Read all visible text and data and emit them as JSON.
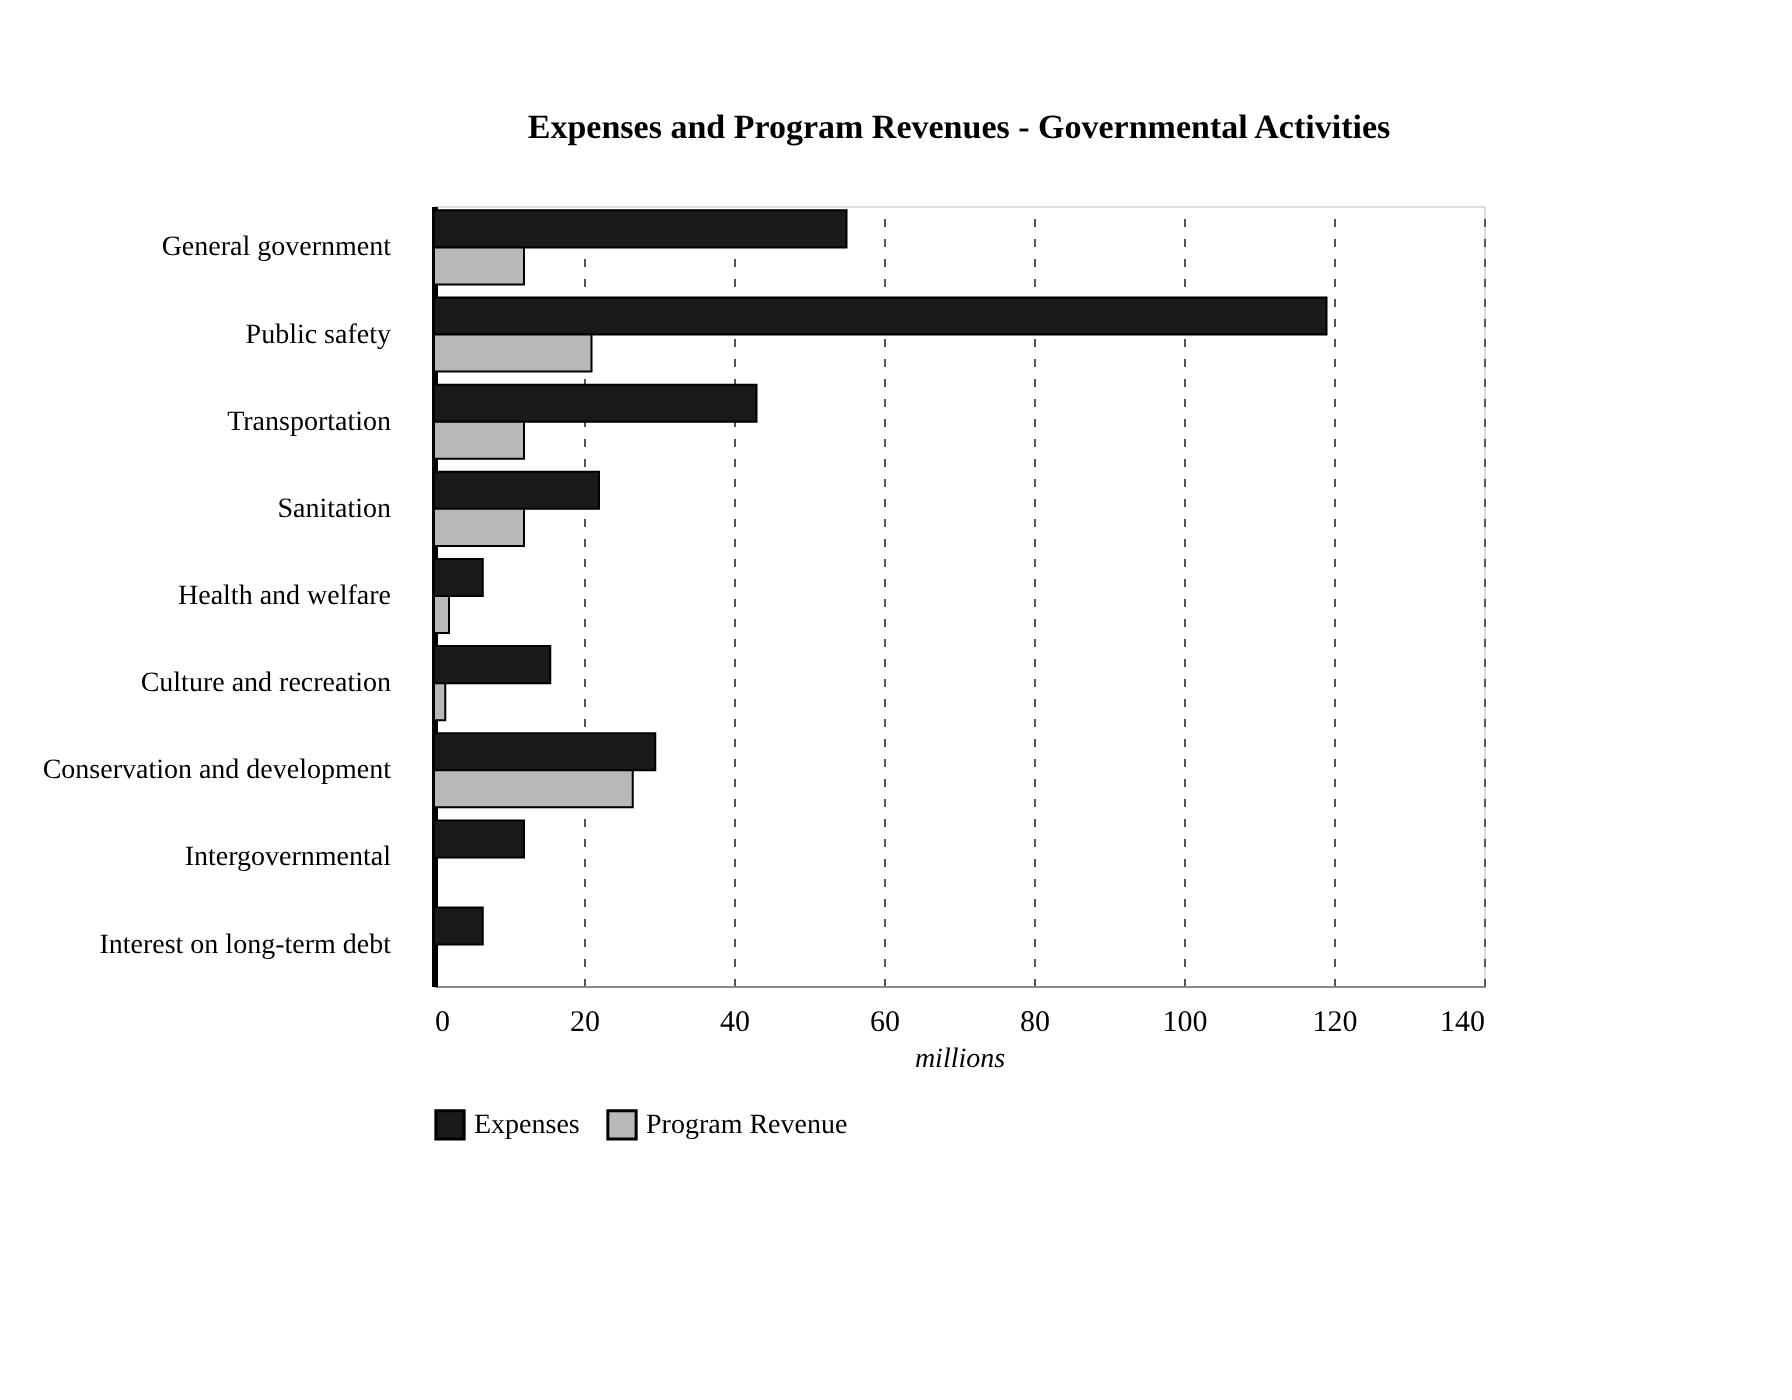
{
  "chart_data": {
    "type": "bar",
    "orientation": "horizontal",
    "title": "Expenses and Program Revenues - Governmental Activities",
    "xlabel": "millions",
    "categories": [
      "General government",
      "Public safety",
      "Transportation",
      "Sanitation",
      "Health and welfare",
      "Culture and recreation",
      "Conservation and development",
      "Intergovernmental",
      "Interest on long-term debt"
    ],
    "series": [
      {
        "name": "Expenses",
        "color": "#1a1a1a",
        "values": [
          55,
          119,
          43,
          22,
          6.5,
          15.5,
          29.5,
          12,
          6.5
        ]
      },
      {
        "name": "Program Revenue",
        "color": "#b8b8b8",
        "values": [
          12,
          21,
          12,
          12,
          2,
          1.5,
          26.5,
          0,
          0
        ]
      }
    ],
    "xlim": [
      0,
      140
    ],
    "xticks": [
      0,
      20,
      40,
      60,
      80,
      100,
      120,
      140
    ],
    "grid": "x",
    "legend": "bottom"
  }
}
